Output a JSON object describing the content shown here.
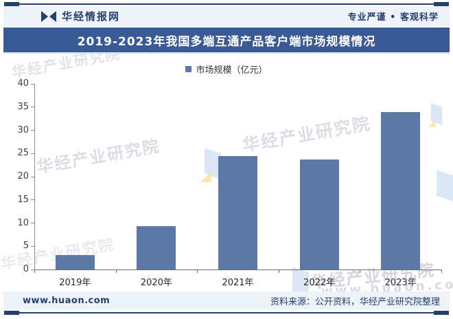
{
  "header": {
    "logo_text": "华经情报网",
    "slogan": "专业严谨 • 客观科学"
  },
  "banner": {
    "title": "2019-2023年我国多端互通产品客户端市场规模情况"
  },
  "legend": {
    "label": "市场规模（亿元）"
  },
  "chart_data": {
    "type": "bar",
    "title": "2019-2023年我国多端互通产品客户端市场规模情况",
    "categories": [
      "2019年",
      "2020年",
      "2021年",
      "2022年",
      "2023年"
    ],
    "values": [
      3.1,
      9.4,
      24.4,
      23.7,
      33.9
    ],
    "series_name": "市场规模（亿元）",
    "xlabel": "",
    "ylabel": "",
    "ylim": [
      0,
      40
    ],
    "yticks": [
      0,
      5,
      10,
      15,
      20,
      25,
      30,
      35,
      40
    ],
    "grid": false,
    "legend_position": "top-center",
    "bar_color": "#5C78A5"
  },
  "watermarks": {
    "brand": "华经产业研究院",
    "site": "www.huaon.com"
  },
  "footer": {
    "left": "www.huaon.com",
    "right": "资料来源：公开资料，华经产业研究院整理"
  },
  "colors": {
    "navy": "#24406F",
    "banner_bg": "#3A5A96",
    "band_bg": "#EEF2F9",
    "bar": "#5C78A5",
    "watermark": "#CBD0D8"
  }
}
